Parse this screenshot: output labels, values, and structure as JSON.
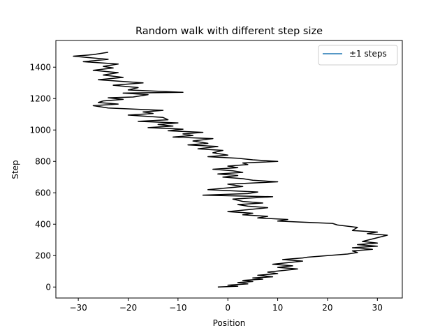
{
  "chart_data": {
    "type": "line",
    "title": "Random walk with different step size",
    "xlabel": "Position",
    "ylabel": "Step",
    "xlim": [
      -34.5,
      35
    ],
    "ylim": [
      -70,
      1570
    ],
    "xticks": [
      -30,
      -20,
      -10,
      0,
      10,
      20,
      30
    ],
    "yticks": [
      0,
      200,
      400,
      600,
      800,
      1000,
      1200,
      1400
    ],
    "grid": false,
    "legend": {
      "placement": "top-right",
      "entries": [
        {
          "label": "±1 steps",
          "color": "#1f77b4"
        }
      ]
    },
    "series": [
      {
        "name": "±1 steps",
        "color": "#000000",
        "x": [
          -2,
          2,
          0,
          4,
          2,
          5,
          3,
          7,
          5,
          9,
          6,
          10,
          8,
          11,
          14,
          10,
          13,
          9,
          12,
          15,
          11,
          15,
          16,
          20,
          24,
          26,
          25,
          29,
          25,
          30,
          26,
          30,
          27,
          32,
          28,
          30,
          25,
          26,
          22,
          21,
          16,
          10,
          12,
          6,
          8,
          3,
          5,
          0,
          8,
          4,
          2,
          7,
          3,
          1,
          9,
          -5,
          4,
          6,
          -4,
          3,
          0,
          10,
          5,
          3,
          -1,
          2,
          -2,
          3,
          1,
          -3,
          2,
          0,
          4,
          3,
          10,
          5,
          2,
          -4,
          0,
          -3,
          -1,
          -6,
          -2,
          -8,
          -4,
          -7,
          -3,
          -11,
          -7,
          -9,
          -5,
          -12,
          -9,
          -16,
          -11,
          -14,
          -10,
          -18,
          -12,
          -13,
          -20,
          -15,
          -17,
          -13,
          -24,
          -27,
          -22,
          -26,
          -25,
          -21,
          -24,
          -19,
          -16,
          -21,
          -9,
          -20,
          -18,
          -23,
          -17,
          -26,
          -21,
          -25,
          -22,
          -27,
          -23,
          -25,
          -22,
          -29,
          -24,
          -31,
          -27,
          -24
        ],
        "y": [
          0,
          5,
          12,
          20,
          28,
          35,
          42,
          50,
          58,
          65,
          75,
          85,
          95,
          105,
          115,
          125,
          135,
          145,
          155,
          165,
          175,
          185,
          190,
          200,
          210,
          220,
          230,
          240,
          250,
          260,
          270,
          280,
          290,
          330,
          340,
          350,
          360,
          380,
          395,
          405,
          412,
          420,
          430,
          440,
          450,
          460,
          470,
          480,
          505,
          515,
          525,
          535,
          545,
          560,
          575,
          585,
          595,
          605,
          620,
          640,
          655,
          670,
          680,
          690,
          700,
          710,
          720,
          730,
          740,
          750,
          760,
          770,
          780,
          790,
          800,
          810,
          820,
          830,
          840,
          855,
          870,
          880,
          895,
          905,
          915,
          930,
          945,
          955,
          965,
          975,
          985,
          995,
          1005,
          1015,
          1025,
          1035,
          1045,
          1055,
          1065,
          1080,
          1095,
          1105,
          1115,
          1125,
          1140,
          1155,
          1165,
          1175,
          1185,
          1195,
          1205,
          1210,
          1225,
          1235,
          1240,
          1255,
          1270,
          1285,
          1300,
          1320,
          1335,
          1350,
          1365,
          1380,
          1395,
          1405,
          1420,
          1435,
          1450,
          1470,
          1480,
          1495
        ]
      }
    ]
  }
}
